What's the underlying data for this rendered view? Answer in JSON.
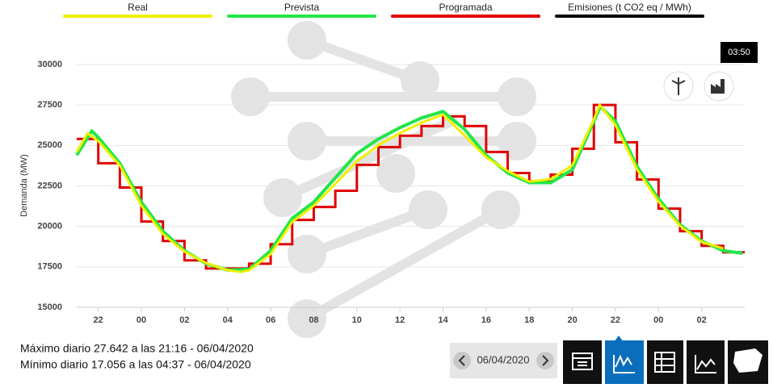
{
  "chart_data": {
    "type": "line",
    "ylabel": "Demanda (MW)",
    "xlim": [
      -3,
      28
    ],
    "xticks": [
      {
        "value": -2,
        "label": "22"
      },
      {
        "value": 0,
        "label": "00"
      },
      {
        "value": 2,
        "label": "02"
      },
      {
        "value": 4,
        "label": "04"
      },
      {
        "value": 6,
        "label": "06"
      },
      {
        "value": 8,
        "label": "08"
      },
      {
        "value": 10,
        "label": "10"
      },
      12,
      14,
      16,
      18,
      20,
      22,
      {
        "value": 24,
        "label": "00"
      },
      {
        "value": 26,
        "label": "02"
      }
    ],
    "ylim": [
      15000,
      30000
    ],
    "yticks": [
      15000,
      17500,
      20000,
      22500,
      25000,
      27500,
      30000
    ],
    "series": [
      {
        "name": "Real",
        "color": "#f0f000",
        "style": "line",
        "x": [
          -3,
          -2.5,
          -2,
          -1,
          0,
          1,
          2,
          3,
          4,
          4.6,
          5,
          6,
          7,
          8,
          9,
          10,
          11,
          12,
          13,
          14,
          15,
          16,
          17,
          18,
          19,
          20,
          21,
          21.27,
          22,
          23,
          24,
          25,
          26,
          27
        ],
        "values": [
          24600,
          25760,
          25270,
          23770,
          21280,
          19530,
          18440,
          17740,
          17290,
          17190,
          17290,
          18290,
          20280,
          21280,
          22620,
          24020,
          25020,
          25760,
          26410,
          26910,
          25610,
          24270,
          23420,
          22770,
          22920,
          23770,
          26610,
          27510,
          26260,
          23520,
          21530,
          20030,
          19040,
          18640
        ]
      },
      {
        "name": "Prevista",
        "color": "#22e64a",
        "style": "line",
        "x": [
          -3,
          -2.3,
          -2,
          -1,
          0,
          1,
          2,
          3,
          4,
          5,
          6,
          7,
          8,
          9,
          10,
          11,
          12,
          13,
          14,
          15,
          16,
          17,
          18,
          19,
          20,
          21,
          21.3,
          22,
          23,
          24,
          25,
          26,
          27,
          27.9
        ],
        "values": [
          24400,
          25900,
          25500,
          23900,
          21500,
          19700,
          18500,
          17700,
          17300,
          17350,
          18500,
          20500,
          21500,
          23000,
          24500,
          25400,
          26100,
          26700,
          27100,
          26000,
          24400,
          23300,
          22700,
          22700,
          23500,
          26500,
          27400,
          26500,
          23700,
          21700,
          20100,
          19100,
          18500,
          18340
        ]
      },
      {
        "name": "Programada",
        "color": "#e00000",
        "style": "step",
        "x": [
          -3,
          -2,
          -1,
          0,
          1,
          2,
          3,
          4,
          5,
          6,
          7,
          8,
          9,
          10,
          11,
          12,
          13,
          14,
          15,
          16,
          17,
          18,
          19,
          20,
          21,
          22,
          23,
          24,
          25,
          26,
          27
        ],
        "values": [
          25400,
          23900,
          22400,
          20300,
          19100,
          17900,
          17400,
          17400,
          17700,
          18900,
          20400,
          21200,
          22200,
          23800,
          24900,
          25600,
          26200,
          26800,
          26200,
          24600,
          23300,
          22800,
          23200,
          24800,
          27500,
          25200,
          22900,
          21100,
          19700,
          18800,
          18400
        ]
      },
      {
        "name": "Emisiones (t CO2 eq / MWh)",
        "color": "#000000"
      }
    ]
  },
  "stats": [
    "Máximo diario 27.642 a las 21:16 - 06/04/2020",
    "Mínimo diario 17.056 a las 04:37 - 06/04/2020"
  ],
  "date": "06/04/2020",
  "time_marker": "03:50"
}
